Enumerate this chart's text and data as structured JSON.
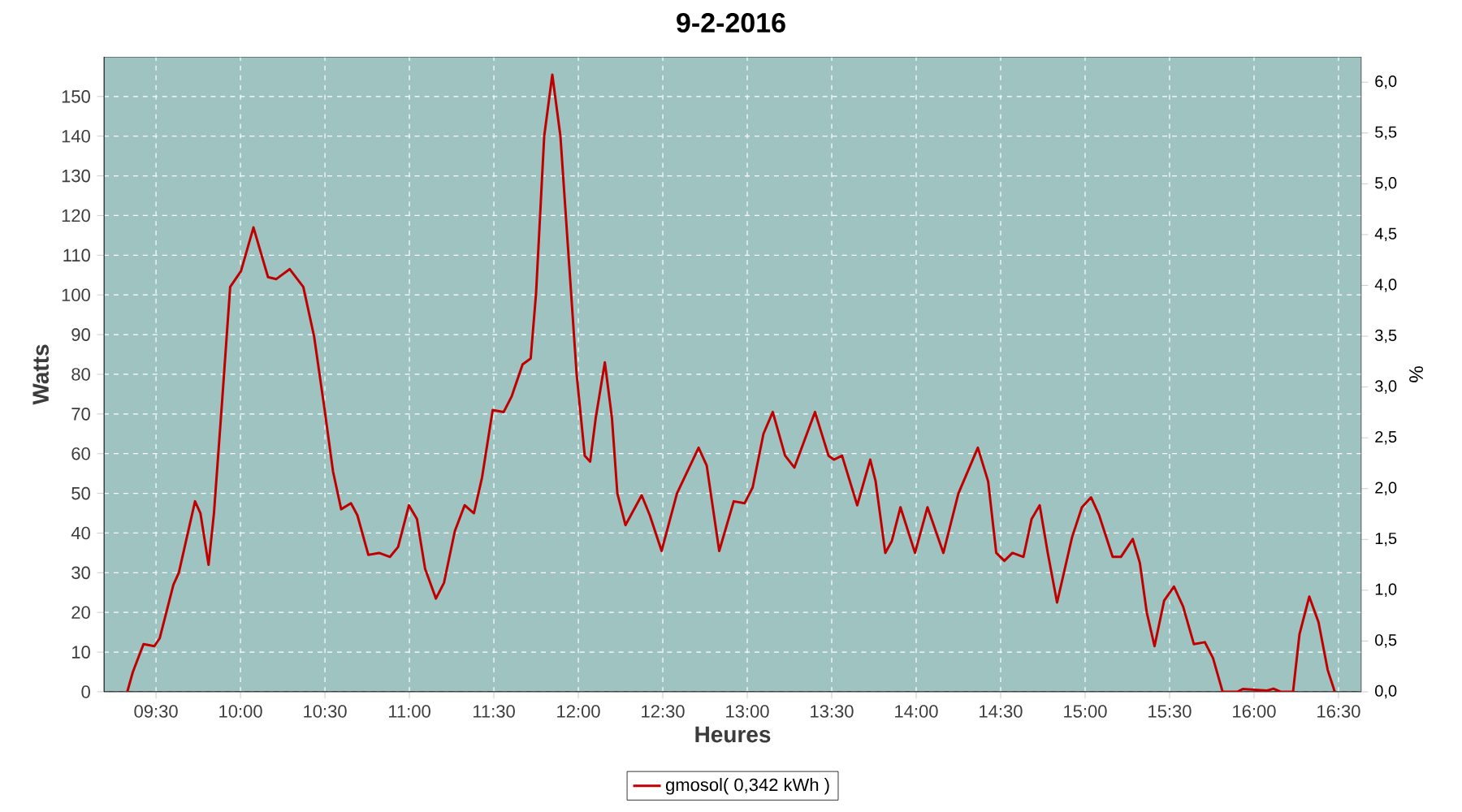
{
  "chart_data": {
    "type": "line",
    "title": "9-2-2016",
    "xlabel": "Heures",
    "ylabel": "Watts",
    "y2label": "%",
    "x": [
      9.33,
      9.363,
      9.426,
      9.49,
      9.522,
      9.603,
      9.635,
      9.683,
      9.731,
      9.763,
      9.811,
      9.843,
      9.891,
      9.939,
      10.003,
      10.077,
      10.163,
      10.212,
      10.291,
      10.372,
      10.436,
      10.5,
      10.548,
      10.596,
      10.654,
      10.692,
      10.757,
      10.82,
      10.885,
      10.933,
      10.997,
      11.045,
      11.093,
      11.157,
      11.205,
      11.269,
      11.327,
      11.382,
      11.43,
      11.493,
      11.558,
      11.606,
      11.67,
      11.718,
      11.75,
      11.798,
      11.846,
      11.894,
      11.942,
      11.99,
      12.038,
      12.07,
      12.103,
      12.157,
      12.199,
      12.231,
      12.279,
      12.375,
      12.423,
      12.493,
      12.584,
      12.712,
      12.76,
      12.834,
      12.92,
      12.984,
      13.032,
      13.096,
      13.151,
      13.224,
      13.279,
      13.353,
      13.401,
      13.481,
      13.513,
      13.561,
      13.651,
      13.728,
      13.76,
      13.817,
      13.856,
      13.907,
      13.993,
      14.067,
      14.161,
      14.25,
      14.365,
      14.426,
      14.474,
      14.522,
      14.57,
      14.635,
      14.683,
      14.731,
      14.779,
      14.834,
      14.923,
      14.981,
      15.035,
      15.083,
      15.163,
      15.212,
      15.282,
      15.324,
      15.365,
      15.411,
      15.468,
      15.526,
      15.58,
      15.644,
      15.709,
      15.757,
      15.814,
      15.901,
      15.933,
      16.077,
      16.115,
      16.157,
      16.231,
      16.269,
      16.327,
      16.382,
      16.436,
      16.478
    ],
    "series": [
      {
        "name": "gmosol( 0,342 kWh )",
        "color": "#c00000",
        "values": [
          0,
          5,
          12,
          11.5,
          13.5,
          27,
          30,
          39,
          48,
          45,
          32,
          45,
          73,
          102,
          106,
          117,
          104.5,
          104,
          106.5,
          102,
          89.5,
          70.5,
          55.5,
          46,
          47.5,
          44.5,
          34.5,
          35,
          34,
          36.5,
          47,
          43.5,
          31,
          23.5,
          27.5,
          40.5,
          47,
          45,
          54,
          71,
          70.5,
          74.5,
          82.5,
          84,
          100.5,
          140,
          155.5,
          140,
          110,
          80,
          59.5,
          58,
          69,
          83,
          69,
          50,
          42,
          49.5,
          44.5,
          35.5,
          50,
          61.5,
          57,
          35.5,
          48,
          47.5,
          51.5,
          65,
          70.5,
          59.5,
          56.5,
          65,
          70.5,
          59.5,
          58.5,
          59.5,
          47,
          58.5,
          53,
          35,
          38,
          46.5,
          35,
          46.5,
          35,
          50,
          61.5,
          53,
          35,
          33,
          35,
          34,
          43.5,
          47,
          35,
          22.5,
          39,
          46.5,
          49,
          44.5,
          34,
          34,
          38.5,
          32.5,
          20,
          11.5,
          23,
          26.5,
          21.5,
          12,
          12.5,
          8.5,
          0,
          0,
          0.7,
          0.3,
          0.8,
          0,
          0,
          14.5,
          24,
          17.5,
          5.5,
          0
        ]
      }
    ],
    "xlim": [
      9.192,
      16.635
    ],
    "xticks": [
      {
        "value": 9.5,
        "label": "09:30"
      },
      {
        "value": 10,
        "label": "10:00"
      },
      {
        "value": 10.5,
        "label": "10:30"
      },
      {
        "value": 11,
        "label": "11:00"
      },
      {
        "value": 11.5,
        "label": "11:30"
      },
      {
        "value": 12,
        "label": "12:00"
      },
      {
        "value": 12.5,
        "label": "12:30"
      },
      {
        "value": 13,
        "label": "13:00"
      },
      {
        "value": 13.5,
        "label": "13:30"
      },
      {
        "value": 14,
        "label": "14:00"
      },
      {
        "value": 14.5,
        "label": "14:30"
      },
      {
        "value": 15,
        "label": "15:00"
      },
      {
        "value": 15.5,
        "label": "15:30"
      },
      {
        "value": 16,
        "label": "16:00"
      },
      {
        "value": 16.5,
        "label": "16:30"
      }
    ],
    "ylim": [
      0,
      160
    ],
    "yticks": [
      0,
      10,
      20,
      30,
      40,
      50,
      60,
      70,
      80,
      90,
      100,
      110,
      120,
      130,
      140,
      150
    ],
    "y2lim": [
      0,
      6.25
    ],
    "y2ticks": [
      {
        "value": 0,
        "label": "0,0"
      },
      {
        "value": 0.5,
        "label": "0,5"
      },
      {
        "value": 1,
        "label": "1,0"
      },
      {
        "value": 1.5,
        "label": "1,5"
      },
      {
        "value": 2,
        "label": "2,0"
      },
      {
        "value": 2.5,
        "label": "2,5"
      },
      {
        "value": 3,
        "label": "3,0"
      },
      {
        "value": 3.5,
        "label": "3,5"
      },
      {
        "value": 4,
        "label": "4,0"
      },
      {
        "value": 4.5,
        "label": "4,5"
      },
      {
        "value": 5,
        "label": "5,0"
      },
      {
        "value": 5.5,
        "label": "5,5"
      },
      {
        "value": 6,
        "label": "6,0"
      }
    ],
    "grid": true,
    "legend": "bottom",
    "line_style": "solid"
  }
}
